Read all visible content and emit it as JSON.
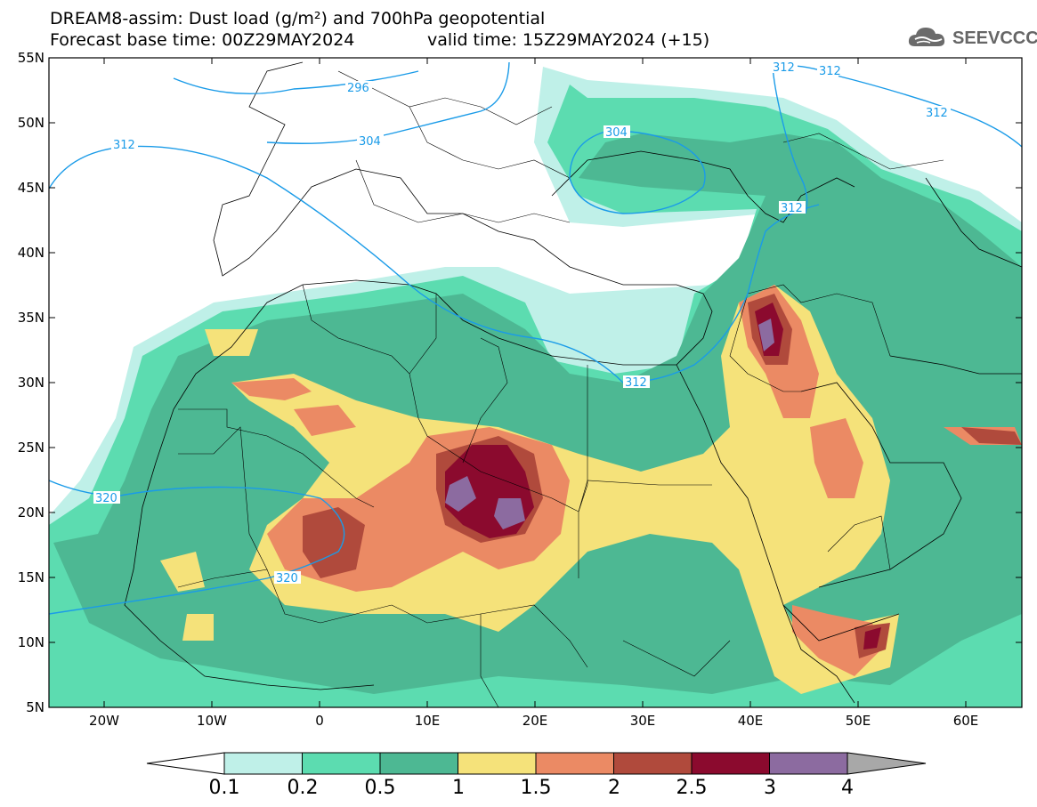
{
  "title": {
    "line1": "DREAM8-assim: Dust load (g/m²) and 700hPa geopotential",
    "line2": "Forecast base time: 00Z29MAY2024",
    "valid": "valid time: 15Z29MAY2024 (+15)"
  },
  "logo": {
    "text": "SEEVCCC",
    "icon": "cloud-icon"
  },
  "axes": {
    "lat_labels": [
      "55N",
      "50N",
      "45N",
      "40N",
      "35N",
      "30N",
      "25N",
      "20N",
      "15N",
      "10N",
      "5N"
    ],
    "lon_labels": [
      "20W",
      "10W",
      "0",
      "10E",
      "20E",
      "30E",
      "40E",
      "50E",
      "60E"
    ]
  },
  "contours": {
    "color": "#1a9be8",
    "labels": [
      "296",
      "304",
      "312",
      "312",
      "312",
      "312",
      "320",
      "320",
      "304",
      "312",
      "312"
    ]
  },
  "colorbar": {
    "labels": [
      "0.1",
      "0.2",
      "0.5",
      "1",
      "1.5",
      "2",
      "2.5",
      "3",
      "4"
    ],
    "colors": [
      "#bff0e8",
      "#5cdcb0",
      "#4db893",
      "#f5e27a",
      "#eb8a64",
      "#b04a3c",
      "#8b0a2e",
      "#8c6ba0"
    ],
    "under_color": "#ffffff",
    "over_color": "#a8a8a8"
  }
}
